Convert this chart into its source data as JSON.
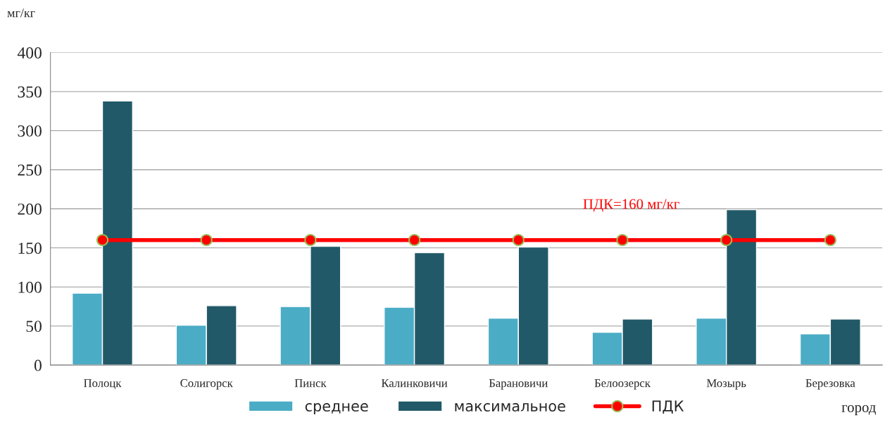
{
  "chart_data": {
    "type": "bar",
    "ylabel": "мг/кг",
    "xlabel": "город",
    "categories": [
      "Полоцк",
      "Солигорск",
      "Пинск",
      "Калинковичи",
      "Барановичи",
      "Белоозерск",
      "Мозырь",
      "Березовка"
    ],
    "series": [
      {
        "name": "среднее",
        "color": "#4bacc6",
        "values": [
          92,
          51,
          75,
          74,
          60,
          42,
          60,
          40
        ]
      },
      {
        "name": "максимальное",
        "color": "#215968",
        "values": [
          338,
          76,
          152,
          144,
          151,
          59,
          199,
          59
        ]
      },
      {
        "name": "ПДК",
        "type": "line",
        "color": "#ff0000",
        "marker": "circle",
        "values": [
          160,
          160,
          160,
          160,
          160,
          160,
          160,
          160
        ]
      }
    ],
    "annotations": [
      "ПДК=160 мг/кг"
    ],
    "ylim": [
      0,
      400
    ],
    "yticks": [
      0,
      50,
      100,
      150,
      200,
      250,
      300,
      350,
      400
    ],
    "grid": "y",
    "legend": "bottom"
  }
}
